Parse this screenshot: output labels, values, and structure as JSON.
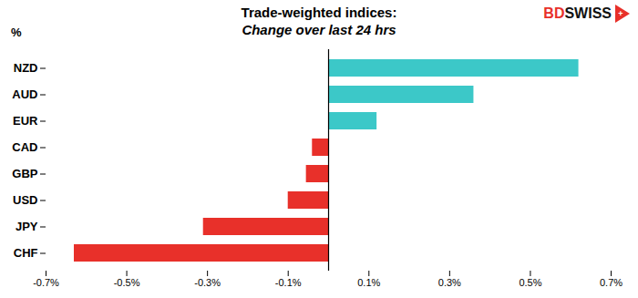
{
  "chart_data": {
    "type": "bar",
    "orientation": "horizontal",
    "title": "Trade-weighted indices:",
    "subtitle": "Change over last 24 hrs",
    "ylabel": "%",
    "categories": [
      "NZD",
      "AUD",
      "EUR",
      "CAD",
      "GBP",
      "USD",
      "JPY",
      "CHF"
    ],
    "values": [
      0.62,
      0.36,
      0.12,
      -0.04,
      -0.055,
      -0.1,
      -0.31,
      -0.63
    ],
    "colors": [
      "#3CC8C8",
      "#3CC8C8",
      "#3CC8C8",
      "#E8302A",
      "#E8302A",
      "#E8302A",
      "#E8302A",
      "#E8302A"
    ],
    "xlim": [
      -0.7,
      0.7
    ],
    "xticks": [
      {
        "value": -0.7,
        "label": "-0.7%"
      },
      {
        "value": -0.5,
        "label": "-0.5%"
      },
      {
        "value": -0.3,
        "label": "-0.3%"
      },
      {
        "value": -0.1,
        "label": "-0.1%"
      },
      {
        "value": 0.1,
        "label": "0.1%"
      },
      {
        "value": 0.3,
        "label": "0.3%"
      },
      {
        "value": 0.5,
        "label": "0.5%"
      },
      {
        "value": 0.7,
        "label": "0.7%"
      }
    ],
    "grid": false,
    "annotations": [
      {
        "text": "BD",
        "color": "#E8302A"
      },
      {
        "text": "SWISS",
        "color": "#111111"
      },
      {
        "text": "+",
        "color": "#FFFFFF"
      }
    ]
  }
}
